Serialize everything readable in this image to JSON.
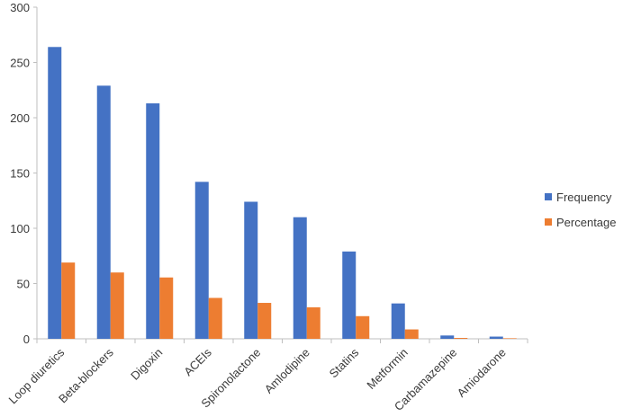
{
  "chart_data": {
    "type": "bar",
    "categories": [
      "Loop diuretics",
      "Beta-blockers",
      "Digoxin",
      "ACEIs",
      "Spironolactone",
      "Amlodipine",
      "Statins",
      "Metformin",
      "Carbamazepine",
      "Amiodarone"
    ],
    "series": [
      {
        "name": "Frequency",
        "color": "#4472C4",
        "values": [
          264,
          229,
          213,
          142,
          124,
          110,
          79,
          32,
          3,
          2
        ]
      },
      {
        "name": "Percentage",
        "color": "#ED7D31",
        "values": [
          69,
          60,
          55.5,
          37,
          32.5,
          28.5,
          20.5,
          8.5,
          0.8,
          0.5
        ]
      }
    ],
    "ylim": [
      0,
      300
    ],
    "yticks": [
      0,
      50,
      100,
      150,
      200,
      250,
      300
    ],
    "title": "",
    "xlabel": "",
    "ylabel": "",
    "grid": false,
    "legend_position": "right"
  }
}
